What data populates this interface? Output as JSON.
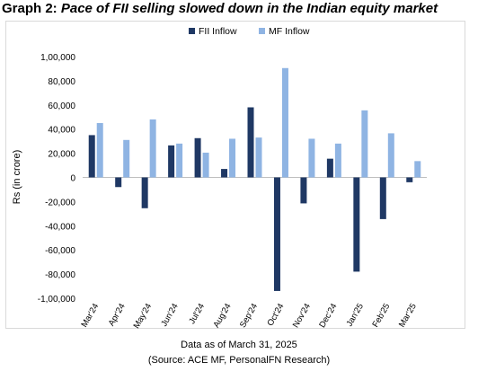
{
  "heading": {
    "lead": "Graph 2:",
    "rest": "Pace of FII selling slowed down in the Indian equity market"
  },
  "footer": {
    "line1": "Data as of March 31, 2025",
    "line2": "(Source: ACE MF, PersonalFN Research)"
  },
  "colors": {
    "fii": "#1f3864",
    "mf": "#8fb4e3",
    "zero_line": "#bfbfbf"
  },
  "chart_data": {
    "type": "bar",
    "categories": [
      "Mar'24",
      "Apr'24",
      "May'24",
      "Jun'24",
      "Jul'24",
      "Aug'24",
      "Sep'24",
      "Oct'24",
      "Nov'24",
      "Dec'24",
      "Jan'25",
      "Feb'25",
      "Mar'25"
    ],
    "series": [
      {
        "name": "FII Inflow",
        "values": [
          35000,
          -8000,
          -25500,
          26500,
          32500,
          7000,
          58000,
          -94000,
          -21500,
          15500,
          -78000,
          -34500,
          -4000
        ]
      },
      {
        "name": "MF Inflow",
        "values": [
          45000,
          31000,
          48000,
          28000,
          20500,
          32000,
          33000,
          90500,
          32000,
          28000,
          55500,
          36500,
          13500
        ]
      }
    ],
    "ylabel": "Rs (in crore)",
    "xlabel": "",
    "ylim": [
      -100000,
      100000
    ],
    "yticks": [
      -100000,
      -80000,
      -60000,
      -40000,
      -20000,
      0,
      20000,
      40000,
      60000,
      80000,
      100000
    ],
    "ytick_labels": [
      "-1,00,000",
      "-80,000",
      "-60,000",
      "-40,000",
      "-20,000",
      "0",
      "20,000",
      "40,000",
      "60,000",
      "80,000",
      "1,00,000"
    ],
    "legend_position": "top-center",
    "grid": false
  }
}
